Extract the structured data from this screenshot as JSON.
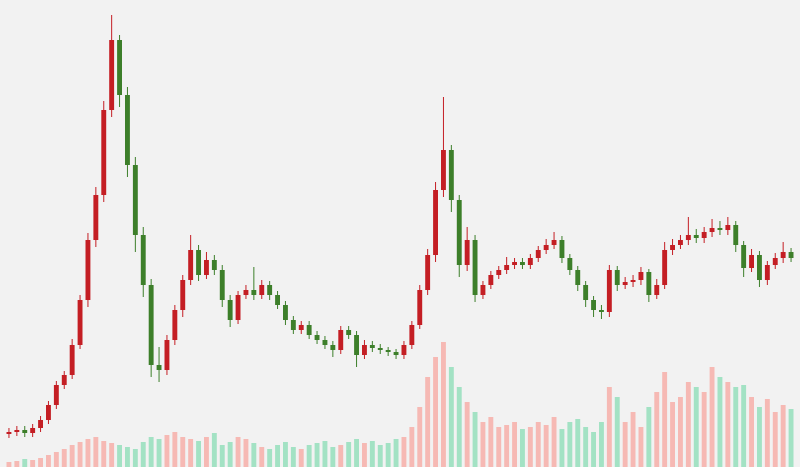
{
  "chart_data": {
    "type": "candlestick",
    "open": [
      33,
      35,
      37,
      34,
      39,
      47,
      62,
      82,
      92,
      122,
      167,
      227,
      272,
      357,
      427,
      372,
      302,
      232,
      182,
      102,
      97,
      127,
      157,
      187,
      217,
      192,
      207,
      197,
      167,
      147,
      172,
      177,
      172,
      182,
      172,
      162,
      147,
      137,
      142,
      132,
      127,
      122,
      117,
      137,
      132,
      112,
      122,
      119,
      117,
      115,
      112,
      122,
      142,
      177,
      212,
      277,
      317,
      267,
      202,
      227,
      172,
      182,
      192,
      197,
      202,
      205,
      202,
      209,
      217,
      222,
      227,
      209,
      197,
      182,
      167,
      157,
      155,
      197,
      182,
      185,
      187,
      195,
      172,
      182,
      217,
      222,
      227,
      232,
      229,
      235,
      239,
      237,
      242,
      222,
      199,
      212,
      187,
      202,
      209,
      215
    ],
    "high": [
      39,
      41,
      41,
      43,
      51,
      66,
      86,
      96,
      128,
      172,
      234,
      280,
      366,
      452,
      432,
      380,
      310,
      240,
      188,
      120,
      132,
      162,
      192,
      232,
      222,
      215,
      212,
      202,
      172,
      176,
      182,
      200,
      187,
      186,
      176,
      166,
      151,
      146,
      146,
      136,
      131,
      126,
      141,
      141,
      136,
      127,
      126,
      123,
      120,
      118,
      126,
      146,
      182,
      218,
      285,
      370,
      322,
      272,
      240,
      232,
      186,
      196,
      201,
      210,
      209,
      209,
      213,
      221,
      228,
      235,
      231,
      213,
      201,
      186,
      171,
      162,
      202,
      201,
      190,
      192,
      200,
      198,
      188,
      225,
      228,
      232,
      250,
      238,
      240,
      248,
      246,
      250,
      246,
      226,
      218,
      216,
      206,
      214,
      225,
      219
    ],
    "low": [
      29,
      31,
      30,
      30,
      35,
      43,
      58,
      78,
      88,
      118,
      160,
      220,
      265,
      350,
      360,
      290,
      215,
      170,
      90,
      85,
      92,
      122,
      150,
      182,
      186,
      188,
      192,
      160,
      140,
      143,
      168,
      167,
      168,
      167,
      158,
      142,
      133,
      133,
      128,
      123,
      118,
      110,
      113,
      128,
      100,
      108,
      115,
      113,
      111,
      108,
      108,
      118,
      138,
      172,
      205,
      270,
      255,
      190,
      196,
      165,
      168,
      178,
      188,
      193,
      198,
      198,
      198,
      205,
      213,
      218,
      204,
      192,
      176,
      160,
      150,
      148,
      150,
      176,
      178,
      180,
      182,
      165,
      168,
      178,
      212,
      218,
      222,
      224,
      224,
      230,
      232,
      232,
      215,
      190,
      195,
      180,
      182,
      198,
      204,
      205
    ],
    "close": [
      35,
      37,
      34,
      39,
      47,
      62,
      82,
      92,
      122,
      167,
      227,
      272,
      357,
      427,
      372,
      302,
      232,
      182,
      102,
      97,
      127,
      157,
      187,
      217,
      192,
      207,
      197,
      167,
      147,
      172,
      177,
      172,
      182,
      172,
      162,
      147,
      137,
      142,
      132,
      127,
      122,
      117,
      137,
      132,
      112,
      122,
      119,
      117,
      115,
      112,
      122,
      142,
      177,
      212,
      277,
      317,
      267,
      202,
      227,
      172,
      182,
      192,
      197,
      202,
      205,
      202,
      209,
      217,
      222,
      227,
      209,
      197,
      182,
      167,
      157,
      155,
      197,
      182,
      185,
      187,
      195,
      172,
      182,
      217,
      222,
      227,
      232,
      229,
      235,
      239,
      237,
      242,
      222,
      199,
      212,
      187,
      202,
      209,
      215,
      209
    ],
    "volume": [
      5,
      6,
      8,
      7,
      9,
      12,
      15,
      18,
      22,
      25,
      28,
      30,
      26,
      24,
      22,
      20,
      18,
      25,
      30,
      28,
      32,
      35,
      30,
      28,
      26,
      30,
      34,
      22,
      25,
      30,
      28,
      24,
      20,
      18,
      22,
      25,
      20,
      18,
      22,
      24,
      26,
      20,
      22,
      25,
      28,
      24,
      26,
      22,
      24,
      28,
      30,
      40,
      60,
      90,
      110,
      125,
      100,
      80,
      65,
      55,
      45,
      50,
      40,
      42,
      45,
      38,
      40,
      45,
      42,
      50,
      38,
      45,
      48,
      40,
      35,
      45,
      80,
      70,
      45,
      55,
      40,
      60,
      75,
      95,
      65,
      70,
      85,
      80,
      75,
      100,
      90,
      85,
      80,
      82,
      70,
      60,
      68,
      55,
      62,
      58
    ],
    "ylim": [
      0,
      467
    ],
    "volume_ylim": [
      0,
      467
    ],
    "up_color": "#c41e24",
    "down_color": "#3d7f2a",
    "volume_up_color": "#f6b9b4",
    "volume_down_color": "#a3e2c4"
  }
}
